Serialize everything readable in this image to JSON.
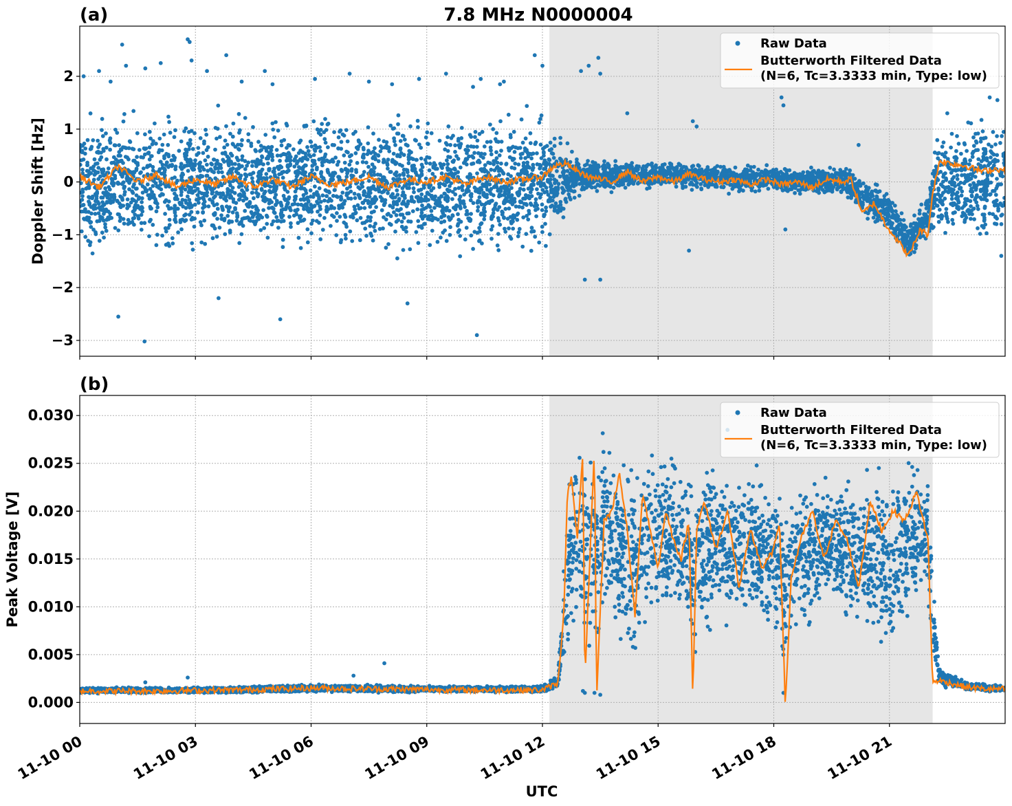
{
  "title": "7.8 MHz N0000004",
  "xlabel": "UTC",
  "colors": {
    "raw": "#1f77b4",
    "filtered": "#ff7f0e",
    "shade": "#e6e6e6",
    "grid": "#b0b0b0"
  },
  "chart_data": [
    {
      "type": "scatter",
      "panel_label": "(a)",
      "ylabel": "Doppler Shift [Hz]",
      "xlim": [
        0,
        24
      ],
      "ylim": [
        -3.3,
        2.95
      ],
      "yticks": [
        -3,
        -2,
        -1,
        0,
        1,
        2
      ],
      "ytick_labels": [
        "−3",
        "−2",
        "−1",
        "0",
        "1",
        "2"
      ],
      "xticks": [
        0,
        3,
        6,
        9,
        12,
        15,
        18,
        21
      ],
      "xtick_labels": [
        "",
        "",
        "",
        "",
        "",
        "",
        "",
        ""
      ],
      "shaded_span": [
        12.18,
        22.12
      ],
      "legend": {
        "position": "upper right",
        "entries": [
          {
            "label": "Raw Data",
            "kind": "marker"
          },
          {
            "label": "Butterworth Filtered Data",
            "label2": "(N=6, Tc=3.3333 min, Type: low)",
            "kind": "line"
          }
        ]
      },
      "series": [
        {
          "name": "Raw Data",
          "kind": "band",
          "x": [
            0,
            3,
            6,
            9,
            12,
            12.2,
            12.8,
            13,
            14,
            15,
            16,
            17,
            18,
            19,
            19.8,
            20.5,
            21,
            21.5,
            21.9,
            22.12,
            22.2,
            23,
            24
          ],
          "lo": [
            -1.6,
            -1.6,
            -1.55,
            -1.55,
            -1.6,
            -1.3,
            -0.4,
            -0.3,
            -0.2,
            -0.15,
            -0.2,
            -0.25,
            -0.25,
            -0.3,
            -0.3,
            -0.8,
            -1.0,
            -1.6,
            -1.2,
            -1.2,
            -1.3,
            -1.4,
            -1.4
          ],
          "hi": [
            1.5,
            1.5,
            1.5,
            1.45,
            1.5,
            1.2,
            0.7,
            0.5,
            0.45,
            0.4,
            0.45,
            0.35,
            0.35,
            0.35,
            0.35,
            0.1,
            -0.1,
            -0.7,
            -0.3,
            0.5,
            1.3,
            1.4,
            1.5
          ]
        },
        {
          "name": "Raw Data outliers",
          "kind": "points",
          "x": [
            0.1,
            0.5,
            0.8,
            1.1,
            1.2,
            1.7,
            2.1,
            2.8,
            2.85,
            2.9,
            3.3,
            3.8,
            4.2,
            4.8,
            5.0,
            6.1,
            7.0,
            7.5,
            8.1,
            8.8,
            9.5,
            10.2,
            10.4,
            10.9,
            11.0,
            11.8,
            12.0,
            13.0,
            13.2,
            13.45,
            13.5,
            14.2,
            15.9,
            16.0,
            18.2,
            18.25,
            20.2,
            22.5,
            23.6,
            23.8,
            1.68,
            1.0,
            3.6,
            5.2,
            8.5,
            10.3,
            13.1,
            13.5,
            15.8,
            18.3,
            23.9
          ],
          "y": [
            2.0,
            2.1,
            1.9,
            2.6,
            2.2,
            2.15,
            2.25,
            2.7,
            2.65,
            2.3,
            2.1,
            2.4,
            1.9,
            2.1,
            1.85,
            1.95,
            2.05,
            1.9,
            1.85,
            1.95,
            2.05,
            1.8,
            1.95,
            1.85,
            1.9,
            2.4,
            2.2,
            2.1,
            2.2,
            2.35,
            2.05,
            1.3,
            1.15,
            1.05,
            1.6,
            1.45,
            0.7,
            1.3,
            1.6,
            1.55,
            -3.02,
            -2.55,
            -2.2,
            -2.6,
            -2.3,
            -2.9,
            -1.85,
            -1.85,
            -1.3,
            -0.9,
            -1.4
          ]
        },
        {
          "name": "Butterworth Filtered Data",
          "kind": "line",
          "x": [
            0,
            0.5,
            1,
            1.5,
            2,
            2.5,
            3,
            3.5,
            4,
            4.5,
            5,
            5.5,
            6,
            6.5,
            7,
            7.5,
            8,
            8.5,
            9,
            9.5,
            10,
            10.5,
            11,
            11.5,
            12,
            12.3,
            12.6,
            12.9,
            13.2,
            13.5,
            13.8,
            14.2,
            14.6,
            15,
            15.4,
            15.8,
            16.2,
            16.6,
            17,
            17.4,
            17.8,
            18.2,
            18.6,
            19,
            19.4,
            19.8,
            20,
            20.3,
            20.6,
            20.9,
            21.2,
            21.5,
            21.8,
            22.0,
            22.1,
            22.3,
            22.6,
            23,
            23.4,
            23.8,
            24
          ],
          "y": [
            0.1,
            -0.1,
            0.3,
            0.0,
            0.15,
            -0.1,
            0.05,
            -0.05,
            0.1,
            -0.1,
            0.05,
            -0.1,
            0.1,
            -0.05,
            0.0,
            0.1,
            -0.1,
            0.05,
            0.0,
            0.1,
            -0.05,
            0.1,
            0.0,
            0.05,
            0.1,
            0.3,
            0.35,
            0.2,
            0.1,
            0.05,
            0.0,
            0.2,
            0.0,
            0.1,
            0.0,
            0.15,
            0.05,
            0.0,
            0.05,
            -0.05,
            0.05,
            -0.05,
            0.0,
            -0.1,
            0.05,
            0.0,
            0.05,
            -0.6,
            -0.4,
            -0.8,
            -1.1,
            -1.4,
            -0.9,
            -1.0,
            -0.3,
            0.4,
            0.35,
            0.3,
            0.2,
            0.25,
            0.2
          ]
        }
      ]
    },
    {
      "type": "scatter",
      "panel_label": "(b)",
      "ylabel": "Peak Voltage [V]",
      "xlim": [
        0,
        24
      ],
      "ylim": [
        -0.0022,
        0.0321
      ],
      "yticks": [
        0.0,
        0.005,
        0.01,
        0.015,
        0.02,
        0.025,
        0.03
      ],
      "ytick_labels": [
        "0.000",
        "0.005",
        "0.010",
        "0.015",
        "0.020",
        "0.025",
        "0.030"
      ],
      "xticks": [
        0,
        3,
        6,
        9,
        12,
        15,
        18,
        21
      ],
      "xtick_labels": [
        "11-10 00",
        "11-10 03",
        "11-10 06",
        "11-10 09",
        "11-10 12",
        "11-10 15",
        "11-10 18",
        "11-10 21"
      ],
      "shaded_span": [
        12.18,
        22.12
      ],
      "legend": {
        "position": "upper right",
        "entries": [
          {
            "label": "Raw Data",
            "kind": "marker"
          },
          {
            "label": "Butterworth Filtered Data",
            "label2": "(N=6, Tc=3.3333 min, Type: low)",
            "kind": "line"
          }
        ]
      },
      "series": [
        {
          "name": "Raw Data",
          "kind": "band",
          "x": [
            0,
            4,
            6,
            9,
            12,
            12.4,
            12.65,
            12.8,
            13.0,
            13.2,
            13.6,
            14.0,
            14.4,
            14.8,
            15.2,
            15.6,
            15.9,
            16.2,
            16.6,
            17.0,
            17.5,
            18.0,
            18.3,
            18.6,
            19.0,
            19.5,
            20.0,
            20.5,
            21.0,
            21.5,
            22.0,
            22.15,
            22.3,
            23.0,
            24
          ],
          "lo": [
            0.0009,
            0.0009,
            0.001,
            0.001,
            0.001,
            0.0011,
            0.003,
            0.006,
            0.004,
            0.002,
            0.006,
            0.005,
            0.004,
            0.006,
            0.007,
            0.008,
            0.002,
            0.006,
            0.008,
            0.006,
            0.007,
            0.005,
            0.001,
            0.006,
            0.007,
            0.008,
            0.007,
            0.006,
            0.003,
            0.008,
            0.009,
            0.002,
            0.0015,
            0.0012,
            0.001
          ],
          "hi": [
            0.0016,
            0.0017,
            0.002,
            0.0018,
            0.0018,
            0.003,
            0.024,
            0.03,
            0.029,
            0.03,
            0.029,
            0.027,
            0.026,
            0.029,
            0.028,
            0.026,
            0.025,
            0.027,
            0.026,
            0.025,
            0.026,
            0.025,
            0.024,
            0.025,
            0.024,
            0.025,
            0.024,
            0.025,
            0.026,
            0.027,
            0.026,
            0.012,
            0.0038,
            0.0022,
            0.0018
          ]
        },
        {
          "name": "Raw Data outliers",
          "kind": "points",
          "x": [
            1.7,
            2.8,
            7.1,
            7.9,
            12.65,
            13.1,
            13.35,
            13.5,
            16.8,
            18.25,
            12.7,
            13.05
          ],
          "y": [
            0.0021,
            0.0026,
            0.0028,
            0.0041,
            0.0145,
            0.001,
            0.001,
            0.0008,
            0.0285,
            0.001,
            0.0128,
            0.0012
          ]
        },
        {
          "name": "Butterworth Filtered Data",
          "kind": "line",
          "x": [
            0,
            2,
            4,
            6,
            8,
            10,
            12,
            12.4,
            12.55,
            12.65,
            12.75,
            12.9,
            13.05,
            13.1,
            13.2,
            13.35,
            13.4,
            13.6,
            13.8,
            14.0,
            14.2,
            14.4,
            14.6,
            14.8,
            15.0,
            15.2,
            15.4,
            15.6,
            15.8,
            15.9,
            16.0,
            16.2,
            16.5,
            16.8,
            17.1,
            17.4,
            17.7,
            18.0,
            18.15,
            18.3,
            18.45,
            18.7,
            19.0,
            19.3,
            19.6,
            19.9,
            20.2,
            20.5,
            20.8,
            21.1,
            21.4,
            21.7,
            22.0,
            22.12,
            22.25,
            22.6,
            23.0,
            23.5,
            24
          ],
          "y": [
            0.0012,
            0.0012,
            0.0013,
            0.0015,
            0.0014,
            0.0013,
            0.0013,
            0.002,
            0.009,
            0.022,
            0.0235,
            0.017,
            0.026,
            0.002,
            0.012,
            0.027,
            0.0003,
            0.019,
            0.02,
            0.024,
            0.018,
            0.009,
            0.022,
            0.018,
            0.014,
            0.02,
            0.017,
            0.015,
            0.019,
            0.0005,
            0.018,
            0.021,
            0.016,
            0.02,
            0.012,
            0.018,
            0.014,
            0.016,
            0.019,
            -0.0007,
            0.013,
            0.017,
            0.02,
            0.015,
            0.019,
            0.017,
            0.012,
            0.021,
            0.018,
            0.02,
            0.019,
            0.022,
            0.017,
            0.002,
            0.0023,
            0.002,
            0.0016,
            0.0014,
            0.0014
          ]
        }
      ]
    }
  ]
}
